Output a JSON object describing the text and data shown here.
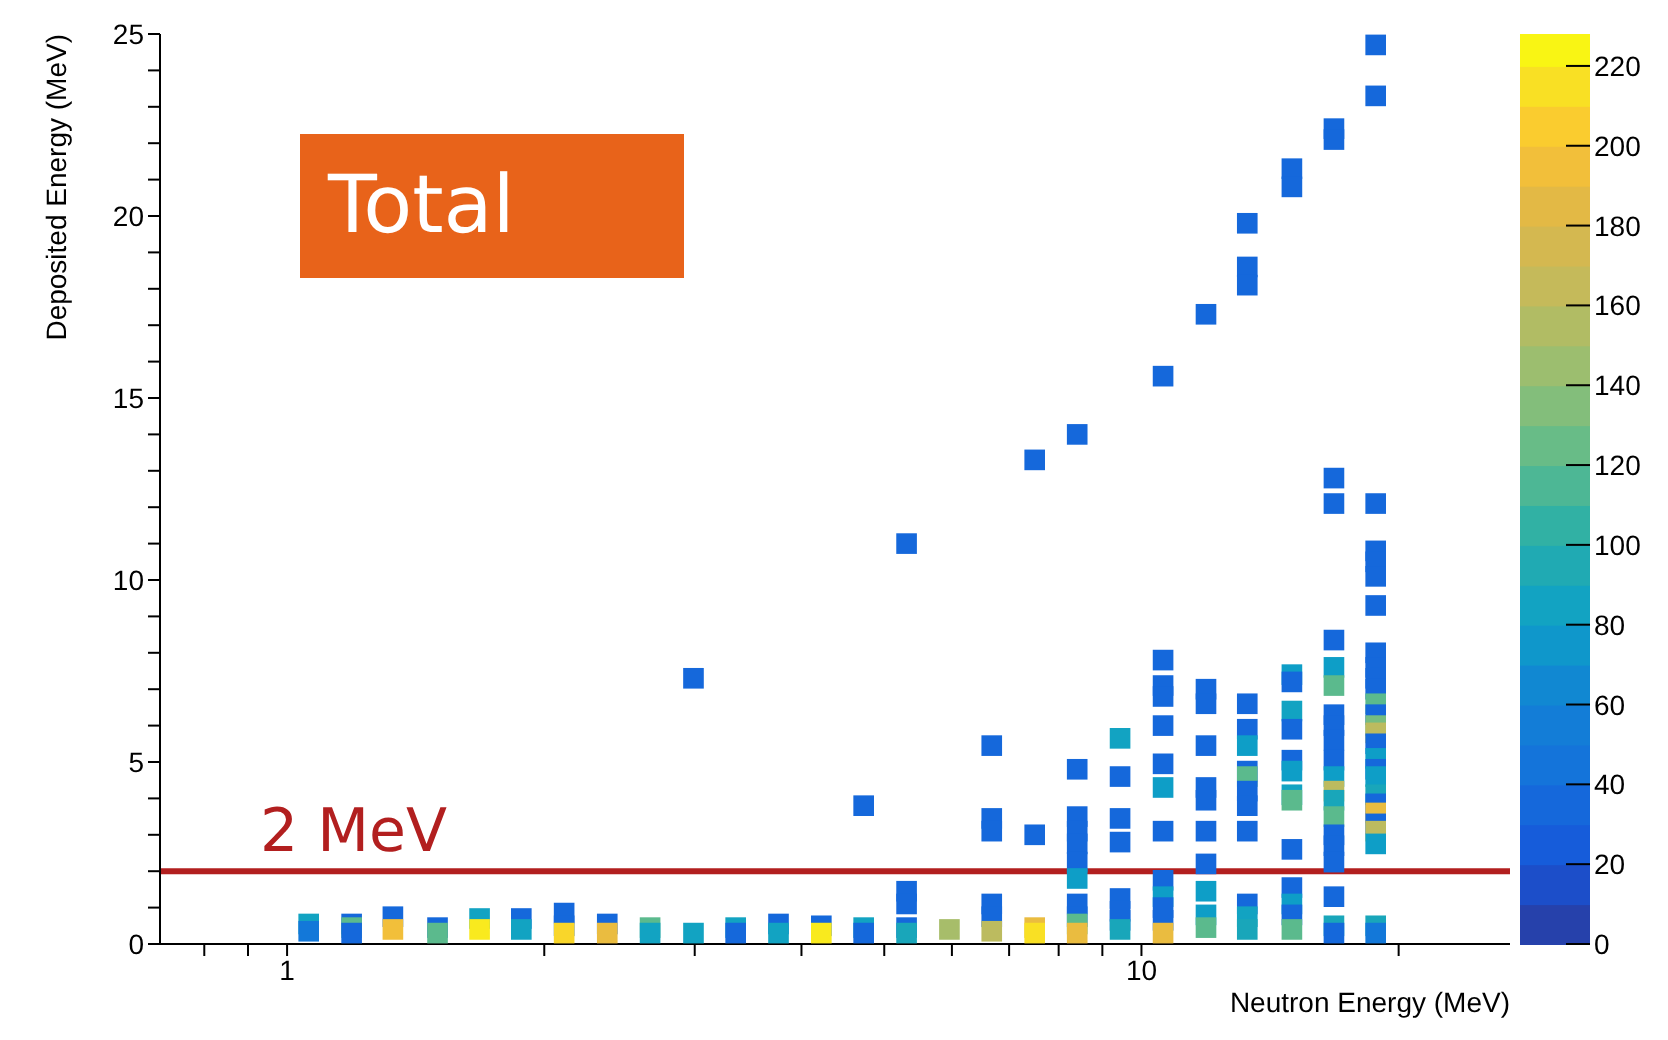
{
  "chart_data": {
    "type": "scatter",
    "marker": "square",
    "xlabel": "Neutron Energy (MeV)",
    "ylabel": "Deposited Energy (MeV)",
    "log": "x",
    "xlim": [
      0.71,
      27
    ],
    "xticks": [
      {
        "value": 0.8,
        "label": null
      },
      {
        "value": 0.9,
        "label": null
      },
      1,
      {
        "value": 2,
        "label": null
      },
      {
        "value": 3,
        "label": null
      },
      {
        "value": 4,
        "label": null
      },
      {
        "value": 5,
        "label": null
      },
      {
        "value": 6,
        "label": null
      },
      {
        "value": 7,
        "label": null
      },
      {
        "value": 8,
        "label": null
      },
      {
        "value": 9,
        "label": null
      },
      10,
      {
        "value": 20,
        "label": null
      }
    ],
    "ylim": [
      0,
      25
    ],
    "yticks": [
      0,
      {
        "value": 1,
        "label": null
      },
      {
        "value": 2,
        "label": null
      },
      {
        "value": 3,
        "label": null
      },
      {
        "value": 4,
        "label": null
      },
      5,
      {
        "value": 6,
        "label": null
      },
      {
        "value": 7,
        "label": null
      },
      {
        "value": 8,
        "label": null
      },
      {
        "value": 9,
        "label": null
      },
      10,
      {
        "value": 11,
        "label": null
      },
      {
        "value": 12,
        "label": null
      },
      {
        "value": 13,
        "label": null
      },
      {
        "value": 14,
        "label": null
      },
      15,
      {
        "value": 16,
        "label": null
      },
      {
        "value": 17,
        "label": null
      },
      {
        "value": 18,
        "label": null
      },
      {
        "value": 19,
        "label": null
      },
      20,
      {
        "value": 21,
        "label": null
      },
      {
        "value": 22,
        "label": null
      },
      {
        "value": 23,
        "label": null
      },
      {
        "value": 24,
        "label": null
      },
      25
    ],
    "clim": [
      0,
      228
    ],
    "cticks": [
      0,
      20,
      40,
      60,
      80,
      100,
      120,
      140,
      160,
      180,
      200,
      220
    ],
    "x": [
      1.06,
      1.06,
      1.19,
      1.19,
      1.19,
      1.33,
      1.33,
      1.5,
      1.5,
      1.68,
      1.68,
      1.88,
      1.88,
      2.11,
      2.11,
      2.11,
      2.37,
      2.37,
      2.66,
      2.66,
      2.99,
      2.99,
      3.35,
      3.35,
      3.76,
      3.76,
      4.22,
      4.22,
      4.73,
      4.73,
      4.73,
      5.31,
      5.31,
      5.31,
      5.31,
      5.31,
      5.96,
      6.68,
      6.68,
      6.68,
      6.68,
      6.68,
      6.68,
      7.5,
      7.5,
      7.5,
      7.5,
      8.41,
      8.41,
      8.41,
      8.41,
      8.41,
      8.41,
      8.41,
      8.41,
      8.41,
      8.41,
      8.41,
      9.44,
      9.44,
      9.44,
      9.44,
      9.44,
      9.44,
      9.44,
      9.44,
      10.6,
      10.6,
      10.6,
      10.6,
      10.6,
      10.6,
      10.6,
      10.6,
      10.6,
      10.6,
      10.6,
      10.6,
      10.6,
      11.9,
      11.9,
      11.9,
      11.9,
      11.9,
      11.9,
      11.9,
      11.9,
      11.9,
      11.9,
      11.9,
      13.3,
      13.3,
      13.3,
      13.3,
      13.3,
      13.3,
      13.3,
      13.3,
      13.3,
      13.3,
      13.3,
      13.3,
      13.3,
      13.3,
      15.0,
      15.0,
      15.0,
      15.0,
      15.0,
      15.0,
      15.0,
      15.0,
      15.0,
      15.0,
      15.0,
      15.0,
      15.0,
      15.0,
      15.0,
      16.8,
      16.8,
      16.8,
      16.8,
      16.8,
      16.8,
      16.8,
      16.8,
      16.8,
      16.8,
      16.8,
      16.8,
      16.8,
      16.8,
      16.8,
      16.8,
      16.8,
      16.8,
      16.8,
      16.8,
      16.8,
      18.8,
      18.8,
      18.8,
      18.8,
      18.8,
      18.8,
      18.8,
      18.8,
      18.8,
      18.8,
      18.8,
      18.8,
      18.8,
      18.8,
      18.8,
      18.8,
      18.8,
      18.8,
      18.8,
      18.8,
      18.8,
      18.8,
      18.8,
      18.8,
      18.8,
      18.8,
      18.8
    ],
    "values": [
      0.55,
      0.35,
      0.55,
      0.45,
      0.3,
      0.75,
      0.4,
      0.45,
      0.3,
      0.7,
      0.4,
      0.7,
      0.4,
      0.85,
      0.5,
      0.3,
      0.55,
      0.3,
      0.45,
      0.3,
      0.3,
      7.3,
      0.45,
      0.3,
      0.55,
      0.3,
      0.5,
      0.3,
      3.8,
      0.45,
      0.3,
      11.0,
      1.45,
      1.1,
      0.45,
      0.3,
      0.4,
      5.45,
      3.45,
      3.1,
      1.1,
      0.75,
      0.35,
      13.3,
      3.0,
      0.45,
      0.3,
      14.0,
      4.8,
      3.5,
      3.1,
      2.75,
      2.25,
      1.8,
      1.1,
      0.75,
      0.55,
      0.3,
      5.65,
      4.6,
      3.45,
      2.8,
      1.25,
      0.9,
      0.65,
      0.4,
      15.6,
      7.8,
      7.1,
      6.8,
      6.0,
      4.95,
      4.3,
      3.1,
      1.75,
      1.3,
      1.0,
      0.65,
      0.3,
      17.3,
      7.0,
      6.6,
      5.45,
      4.3,
      3.95,
      3.1,
      2.2,
      1.45,
      0.8,
      0.45,
      19.8,
      18.6,
      18.1,
      6.6,
      5.9,
      5.45,
      4.75,
      4.6,
      4.2,
      3.8,
      3.1,
      1.1,
      0.75,
      0.4,
      21.3,
      20.8,
      7.4,
      7.2,
      6.4,
      5.9,
      5.05,
      4.75,
      4.1,
      3.95,
      2.6,
      1.55,
      1.1,
      0.8,
      0.4,
      22.4,
      22.1,
      12.8,
      12.1,
      8.35,
      7.6,
      7.1,
      6.3,
      6.0,
      5.6,
      5.05,
      4.6,
      4.2,
      3.95,
      3.5,
      3.0,
      2.7,
      2.25,
      1.3,
      0.5,
      0.3,
      24.7,
      23.3,
      12.1,
      10.8,
      10.5,
      10.1,
      9.3,
      8.0,
      7.6,
      7.3,
      7.0,
      6.6,
      6.3,
      6.0,
      5.8,
      5.5,
      5.1,
      4.8,
      4.6,
      4.1,
      3.85,
      3.6,
      3.3,
      3.1,
      2.75,
      0.5,
      0.3
    ],
    "cvalues": [
      85,
      50,
      35,
      120,
      35,
      35,
      195,
      35,
      120,
      85,
      220,
      35,
      85,
      35,
      35,
      210,
      35,
      190,
      120,
      85,
      85,
      35,
      85,
      35,
      35,
      85,
      35,
      220,
      35,
      85,
      35,
      35,
      35,
      35,
      35,
      90,
      150,
      35,
      35,
      35,
      35,
      35,
      160,
      35,
      35,
      190,
      215,
      35,
      35,
      35,
      35,
      35,
      35,
      80,
      35,
      35,
      120,
      190,
      85,
      35,
      35,
      35,
      35,
      35,
      35,
      90,
      35,
      35,
      35,
      35,
      35,
      35,
      80,
      35,
      35,
      80,
      35,
      35,
      190,
      35,
      35,
      35,
      35,
      35,
      35,
      35,
      35,
      80,
      80,
      120,
      35,
      35,
      35,
      35,
      35,
      80,
      35,
      120,
      35,
      35,
      35,
      35,
      85,
      90,
      35,
      35,
      80,
      35,
      85,
      35,
      35,
      80,
      85,
      120,
      35,
      35,
      80,
      35,
      120,
      35,
      35,
      35,
      35,
      35,
      80,
      120,
      35,
      35,
      35,
      35,
      80,
      160,
      90,
      120,
      35,
      35,
      35,
      35,
      90,
      35,
      35,
      35,
      35,
      35,
      35,
      35,
      35,
      35,
      35,
      35,
      35,
      120,
      35,
      130,
      160,
      35,
      80,
      35,
      80,
      90,
      35,
      190,
      35,
      160,
      80,
      90,
      50
    ],
    "ref_lines": [
      {
        "axis": "y",
        "value": 2,
        "label": "2 MeV",
        "color": "#b21f1f"
      }
    ],
    "annotations": [
      "Total"
    ]
  }
}
